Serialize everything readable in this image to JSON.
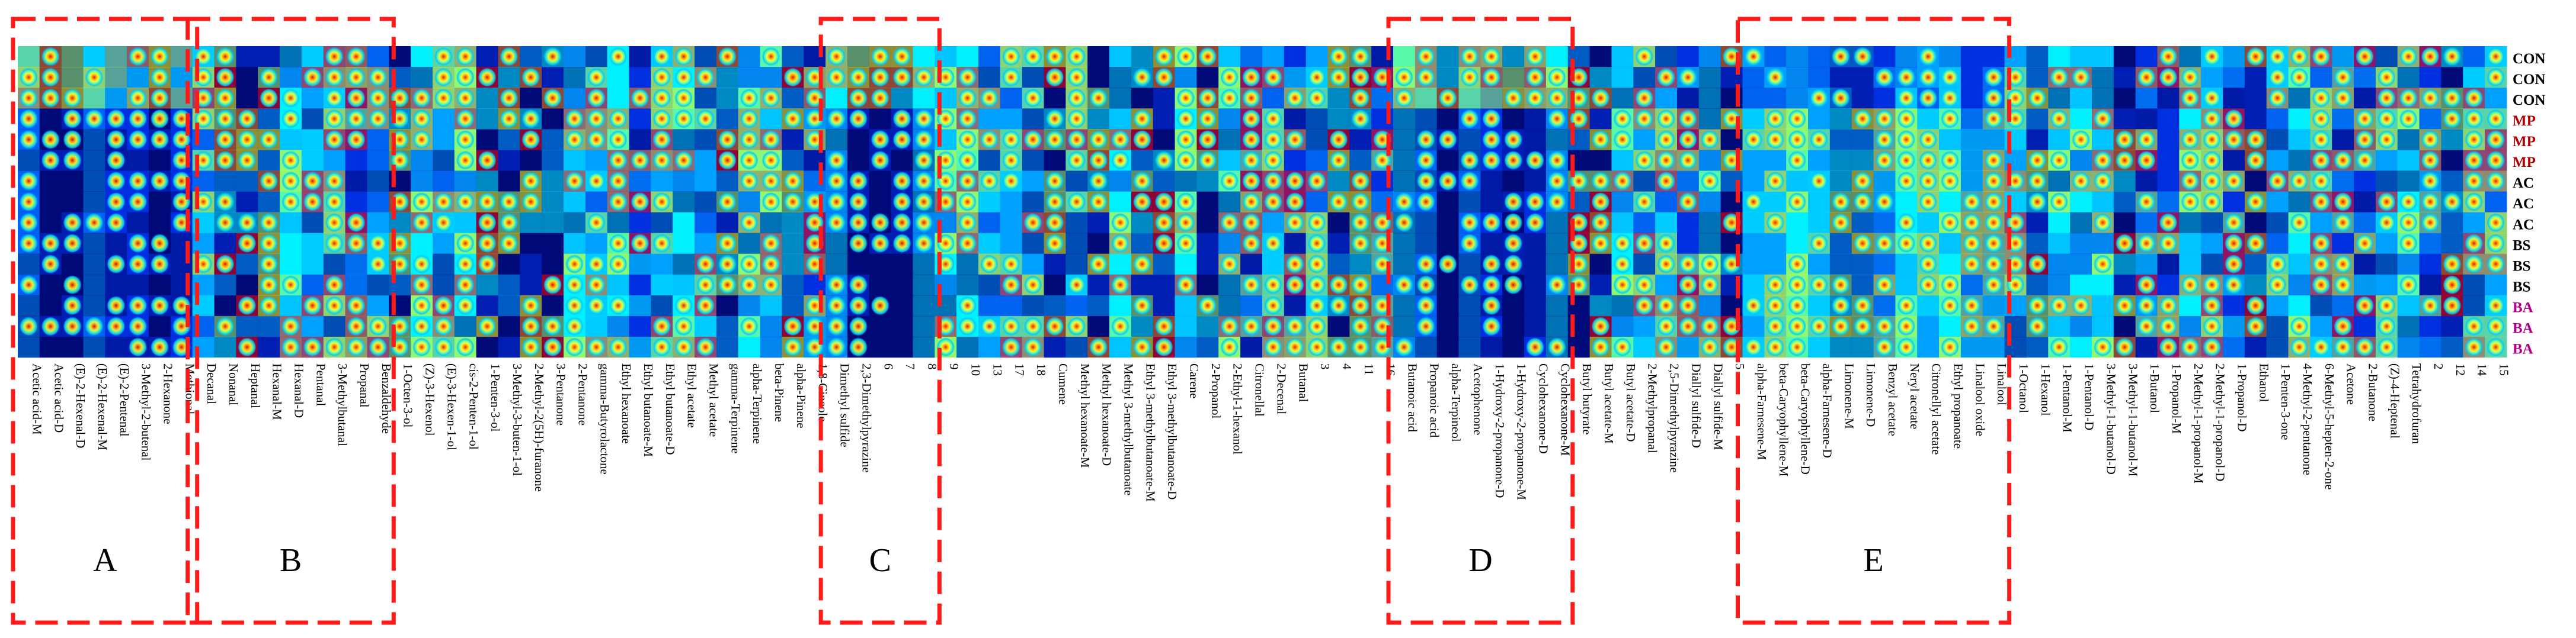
{
  "chart_data": {
    "type": "heatmap",
    "title": "",
    "colormap": [
      "#000a78",
      "#0030e0",
      "#00a0ff",
      "#00f0ff",
      "#a0ff60",
      "#ffff00",
      "#ff8000",
      "#ff0000"
    ],
    "row_labels": [
      "CON",
      "CON",
      "CON",
      "MP",
      "MP",
      "MP",
      "AC",
      "AC",
      "AC",
      "BS",
      "BS",
      "BS",
      "BA",
      "BA",
      "BA"
    ],
    "row_label_colors": [
      "#000000",
      "#000000",
      "#000000",
      "#b00000",
      "#b00000",
      "#b00000",
      "#000000",
      "#000000",
      "#000000",
      "#000000",
      "#000000",
      "#000000",
      "#b0008a",
      "#b0008a",
      "#b0008a"
    ],
    "column_labels": [
      "Acetic acid-M",
      "Acetic acid-D",
      "(E)-2-Hexenal-D",
      "(E)-2-Hexenal-M",
      "(E)-2-Pentenal",
      "3-Methyl-2-butenal",
      "2-Hexanone",
      "Methional",
      "Decanal",
      "Nonanal",
      "Heptanal",
      "Hexanal-M",
      "Hexanal-D",
      "Pentanal",
      "3-Methylbutanal",
      "Propanal",
      "Benzaldehyde",
      "1-Octen-3-ol",
      "(Z)-3-Hexenol",
      "(E)-3-Hexen-1-ol",
      "cis-2-Penten-1-ol",
      "1-Penten-3-ol",
      "3-Methyl-3-buten-1-ol",
      "2-Methyl-2(5H)-furanone",
      "3-Pentanone",
      "2-Pentanone",
      "gamma-Butyrolactone",
      "Ethyl hexanoate",
      "Ethyl butanoate-M",
      "Ethyl butanoate-D",
      "Ethyl acetate",
      "Methyl acetate",
      "gamma-Terpinene",
      "alpha-Terpinene",
      "beta-Pinene",
      "alpha-Pinene",
      "1,8-Cineole",
      "Dimethyl sulfide",
      "2,3-Dimethylpyrazine",
      "6",
      "7",
      "8",
      "9",
      "10",
      "13",
      "17",
      "18",
      "Cumene",
      "Methyl hexanoate-M",
      "Methyl hexanoate-D",
      "Methyl 3-methylbutanoate",
      "Ethyl 3-methylbutanoate-M",
      "Ethyl 3-methylbutanoate-D",
      "Carene",
      "2-Propanol",
      "2-Ethyl-1-hexanol",
      "Citronellal",
      "2-Decenal",
      "Butanal",
      "3",
      "4",
      "11",
      "16",
      "Butanoic acid",
      "Propanoic acid",
      "alpha-Terpineol",
      "Acetophenone",
      "1-Hydroxy-2-propanone-D",
      "1-Hydroxy-2-propanone-M",
      "Cyclohexanone-D",
      "Cyclohexanone-M",
      "Butyl butyrate",
      "Butyl acetate-M",
      "Butyl acetate-D",
      "2-Methylpropanal",
      "2,5-Dimethylpyrazine",
      "Diallyl sulfide-D",
      "Diallyl sulfide-M",
      "5",
      "alpha-Farnesene-M",
      "beta-Caryophyllene-M",
      "beta-Caryophyllene-D",
      "alpha-Farnesene-D",
      "Limonene-M",
      "Limonene-D",
      "Benzyl acetate",
      "Neryl acetate",
      "Citronellyl acetate",
      "Ethyl propanoate",
      "Linalool oxide",
      "Linalool",
      "1-Octanol",
      "1-Hexanol",
      "1-Pentanol-M",
      "1-Pentanol-D",
      "3-Methyl-1-butanol-D",
      "3-Methyl-1-butanol-M",
      "1-Butanol",
      "1-Propanol-M",
      "2-Methyl-1-propanol-M",
      "2-Methyl-1-propanol-D",
      "1-Propanol-D",
      "Ethanol",
      "1-Penten-3-one",
      "4-Methyl-2-pentanone",
      "6-Methyl-5-hepten-2-one",
      "Acetone",
      "2-Butanone",
      "(Z)-4-Heptenal",
      "Tetrahydrofuran",
      "2",
      "12",
      "14",
      "15"
    ],
    "groups": [
      {
        "label": "A",
        "from": "Acetic acid-M",
        "to": "Methional"
      },
      {
        "label": "B",
        "from": "Decanal",
        "to": "Benzaldehyde"
      },
      {
        "label": "C",
        "from": "Dimethyl sulfide",
        "to": "8"
      },
      {
        "label": "D",
        "from": "Butanoic acid",
        "to": "Cyclohexanone-M"
      },
      {
        "label": "E",
        "from": "alpha-Farnesene-M",
        "to": "Linalool"
      }
    ]
  }
}
